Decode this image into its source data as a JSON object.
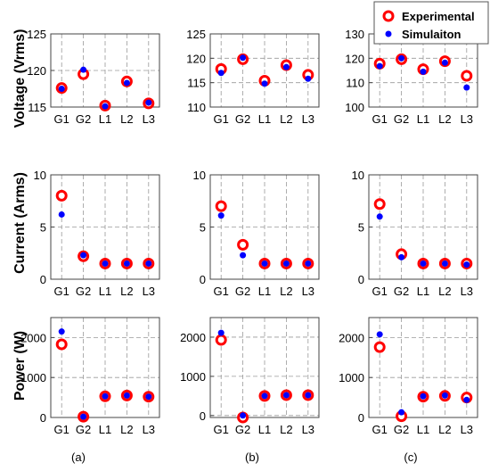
{
  "legend": {
    "position": "top-right",
    "entries": [
      {
        "label": "Experimental",
        "color": "#ff0000",
        "marker": "red-ring"
      },
      {
        "label": "Simulaiton",
        "color": "#0000ff",
        "marker": "blue-dot"
      }
    ]
  },
  "row_labels": [
    "Voltage (Vrms)",
    "Current (Arms)",
    "Power (W)"
  ],
  "column_labels": [
    "(a)",
    "(b)",
    "(c)"
  ],
  "chart_data": [
    {
      "type": "scatter",
      "panel": "a-voltage",
      "ylabel": "Voltage (Vrms)",
      "categories": [
        "G1",
        "G2",
        "L1",
        "L2",
        "L3"
      ],
      "ylim": [
        115,
        125
      ],
      "yticks": [
        115,
        120,
        125
      ],
      "grid": true,
      "series": [
        {
          "name": "Experimental",
          "values": [
            117.6,
            119.5,
            115.2,
            118.5,
            115.5
          ]
        },
        {
          "name": "Simulaiton",
          "values": [
            117.5,
            120.1,
            115.1,
            118.3,
            115.6
          ]
        }
      ]
    },
    {
      "type": "scatter",
      "panel": "b-voltage",
      "categories": [
        "G1",
        "G2",
        "L1",
        "L2",
        "L3"
      ],
      "ylim": [
        110,
        125
      ],
      "yticks": [
        110,
        115,
        120,
        125
      ],
      "grid": true,
      "series": [
        {
          "name": "Experimental",
          "values": [
            117.8,
            119.8,
            115.4,
            118.6,
            116.6
          ]
        },
        {
          "name": "Simulaiton",
          "values": [
            117.0,
            120.1,
            114.8,
            118.2,
            115.8
          ]
        }
      ]
    },
    {
      "type": "scatter",
      "panel": "c-voltage",
      "categories": [
        "G1",
        "G2",
        "L1",
        "L2",
        "L3"
      ],
      "ylim": [
        100,
        130
      ],
      "yticks": [
        100,
        110,
        120,
        130
      ],
      "grid": true,
      "series": [
        {
          "name": "Experimental",
          "values": [
            117.8,
            119.6,
            115.5,
            118.8,
            112.8
          ]
        },
        {
          "name": "Simulaiton",
          "values": [
            116.8,
            120.0,
            114.5,
            118.2,
            108.0
          ]
        }
      ]
    },
    {
      "type": "scatter",
      "panel": "a-current",
      "ylabel": "Current (Arms)",
      "categories": [
        "G1",
        "G2",
        "L1",
        "L2",
        "L3"
      ],
      "ylim": [
        0,
        10
      ],
      "yticks": [
        0,
        5,
        10
      ],
      "grid": true,
      "series": [
        {
          "name": "Experimental",
          "values": [
            8.0,
            2.2,
            1.5,
            1.5,
            1.5
          ]
        },
        {
          "name": "Simulaiton",
          "values": [
            6.2,
            2.3,
            1.5,
            1.5,
            1.5
          ]
        }
      ]
    },
    {
      "type": "scatter",
      "panel": "b-current",
      "categories": [
        "G1",
        "G2",
        "L1",
        "L2",
        "L3"
      ],
      "ylim": [
        0,
        10
      ],
      "yticks": [
        0,
        5,
        10
      ],
      "grid": true,
      "series": [
        {
          "name": "Experimental",
          "values": [
            7.0,
            3.3,
            1.5,
            1.5,
            1.5
          ]
        },
        {
          "name": "Simulaiton",
          "values": [
            6.1,
            2.3,
            1.5,
            1.5,
            1.5
          ]
        }
      ]
    },
    {
      "type": "scatter",
      "panel": "c-current",
      "categories": [
        "G1",
        "G2",
        "L1",
        "L2",
        "L3"
      ],
      "ylim": [
        0,
        10
      ],
      "yticks": [
        0,
        5,
        10
      ],
      "grid": true,
      "series": [
        {
          "name": "Experimental",
          "values": [
            7.2,
            2.4,
            1.5,
            1.5,
            1.5
          ]
        },
        {
          "name": "Simulaiton",
          "values": [
            6.0,
            2.1,
            1.5,
            1.5,
            1.4
          ]
        }
      ]
    },
    {
      "type": "scatter",
      "panel": "a-power",
      "ylabel": "Power (W)",
      "categories": [
        "G1",
        "G2",
        "L1",
        "L2",
        "L3"
      ],
      "ylim": [
        0,
        2500
      ],
      "yticks": [
        0,
        1000,
        2000
      ],
      "grid": true,
      "series": [
        {
          "name": "Experimental",
          "values": [
            1830,
            20,
            530,
            550,
            520
          ]
        },
        {
          "name": "Simulaiton",
          "values": [
            2150,
            20,
            530,
            550,
            520
          ]
        }
      ]
    },
    {
      "type": "scatter",
      "panel": "b-power",
      "categories": [
        "G1",
        "G2",
        "L1",
        "L2",
        "L3"
      ],
      "ylim": [
        -50,
        2500
      ],
      "yticks": [
        0,
        1000,
        2000
      ],
      "grid": true,
      "series": [
        {
          "name": "Experimental",
          "values": [
            1930,
            -50,
            500,
            520,
            520
          ]
        },
        {
          "name": "Simulaiton",
          "values": [
            2110,
            0,
            500,
            520,
            520
          ]
        }
      ]
    },
    {
      "type": "scatter",
      "panel": "c-power",
      "categories": [
        "G1",
        "G2",
        "L1",
        "L2",
        "L3"
      ],
      "ylim": [
        0,
        2500
      ],
      "yticks": [
        0,
        1000,
        2000
      ],
      "grid": true,
      "series": [
        {
          "name": "Experimental",
          "values": [
            1760,
            30,
            520,
            540,
            500
          ]
        },
        {
          "name": "Simulaiton",
          "values": [
            2080,
            130,
            530,
            550,
            440
          ]
        }
      ]
    }
  ]
}
